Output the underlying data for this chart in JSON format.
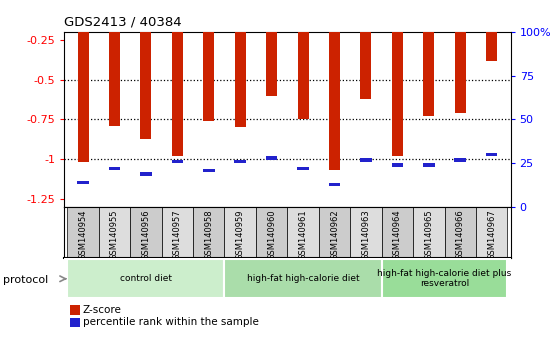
{
  "title": "GDS2413 / 40384",
  "samples": [
    "GSM140954",
    "GSM140955",
    "GSM140956",
    "GSM140957",
    "GSM140958",
    "GSM140959",
    "GSM140960",
    "GSM140961",
    "GSM140962",
    "GSM140963",
    "GSM140964",
    "GSM140965",
    "GSM140966",
    "GSM140967"
  ],
  "zscore": [
    -1.02,
    -0.79,
    -0.87,
    -0.98,
    -0.76,
    -0.8,
    -0.6,
    -0.75,
    -1.07,
    -0.62,
    -0.98,
    -0.73,
    -0.71,
    -0.38
  ],
  "percentile": [
    14,
    22,
    19,
    26,
    21,
    26,
    28,
    22,
    13,
    27,
    24,
    24,
    27,
    30
  ],
  "bar_color": "#cc2200",
  "pct_color": "#2222cc",
  "ylim_left": [
    -1.3,
    -0.2
  ],
  "ylim_right": [
    0,
    100
  ],
  "yticks_left": [
    -1.25,
    -1.0,
    -0.75,
    -0.5,
    -0.25
  ],
  "yticks_right": [
    0,
    25,
    50,
    75,
    100
  ],
  "ytick_labels_left": [
    "-1.25",
    "-1",
    "-0.75",
    "-0.5",
    "-0.25"
  ],
  "ytick_labels_right": [
    "0",
    "25",
    "50",
    "75",
    "100%"
  ],
  "gridlines": [
    -1.0,
    -0.75,
    -0.5
  ],
  "groups": [
    {
      "label": "control diet",
      "start": 0,
      "end": 5,
      "color": "#cceecc"
    },
    {
      "label": "high-fat high-calorie diet",
      "start": 5,
      "end": 10,
      "color": "#aaddaa"
    },
    {
      "label": "high-fat high-calorie diet plus\nresveratrol",
      "start": 10,
      "end": 14,
      "color": "#99dd99"
    }
  ],
  "protocol_label": "protocol",
  "legend_zscore": "Z-score",
  "legend_pct": "percentile rank within the sample",
  "bar_width": 0.35,
  "background_color": "#ffffff",
  "tick_area_color": "#cccccc",
  "tick_area_alt_color": "#dddddd"
}
